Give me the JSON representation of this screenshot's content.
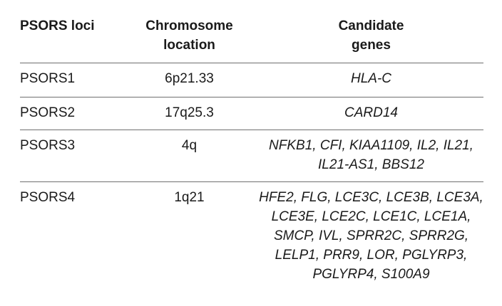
{
  "table": {
    "headers": {
      "col1": "PSORS loci",
      "col2_line1": "Chromosome",
      "col2_line2": "location",
      "col3_line1": "Candidate",
      "col3_line2": "genes"
    },
    "rows": [
      {
        "locus": "PSORS1",
        "location": "6p21.33",
        "genes": [
          "HLA-C"
        ]
      },
      {
        "locus": "PSORS2",
        "location": "17q25.3",
        "genes": [
          "CARD14"
        ]
      },
      {
        "locus": "PSORS3",
        "location": "4q",
        "genes": [
          "NFKB1, CFI, KIAA1109, IL2, IL21,",
          "IL21-AS1, BBS12"
        ]
      },
      {
        "locus": "PSORS4",
        "location": "1q21",
        "genes": [
          "HFE2, FLG, LCE3C, LCE3B, LCE3A,",
          "LCE3E, LCE2C, LCE1C, LCE1A,",
          "SMCP, IVL, SPRR2C, SPRR2G,",
          "LELP1, PRR9, LOR, PGLYRP3,",
          "PGLYRP4, S100A9"
        ]
      }
    ]
  }
}
